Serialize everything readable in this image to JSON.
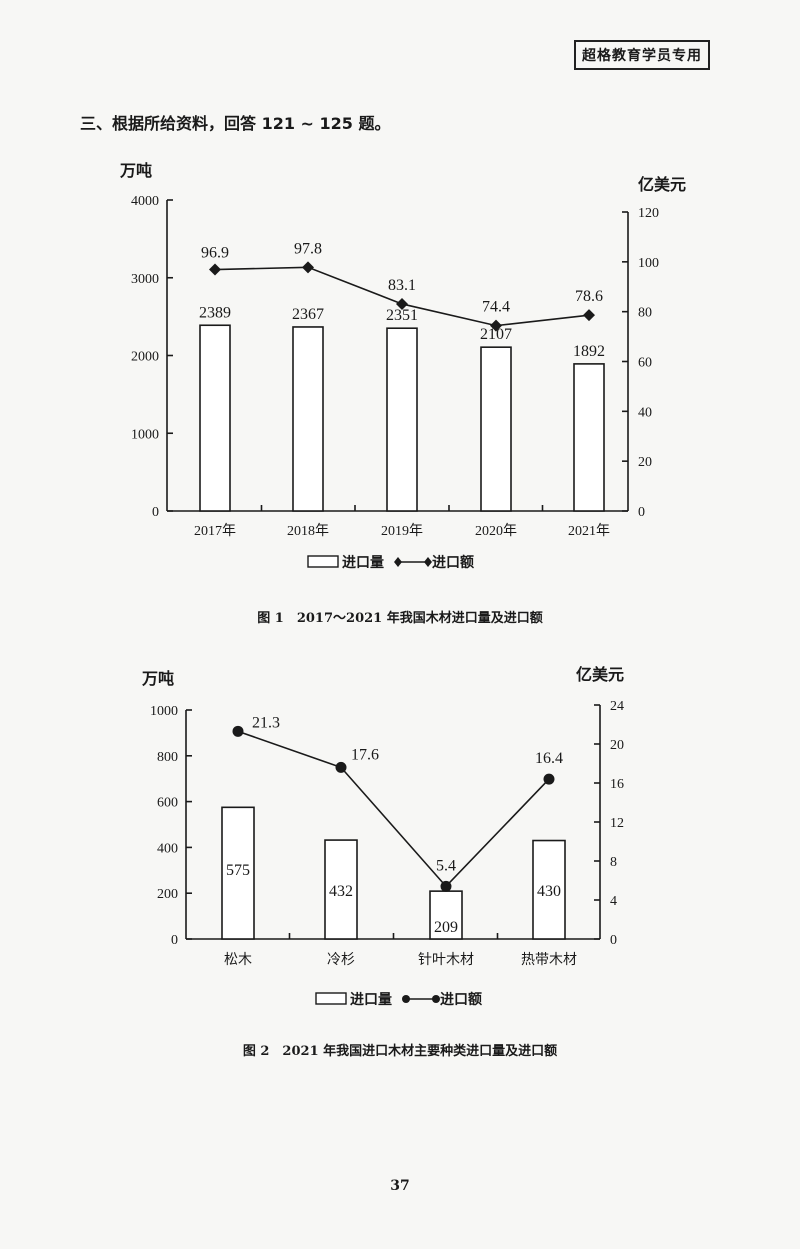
{
  "header": {
    "badge": "超格教育学员专用"
  },
  "question": {
    "text": "三、根据所给资料，回答 121 ~ 125 题。"
  },
  "chart_data": [
    {
      "type": "bar",
      "title": "图 1　2017～2021 年我国木材进口量及进口额",
      "categories": [
        "2017年",
        "2018年",
        "2019年",
        "2020年",
        "2021年"
      ],
      "series": [
        {
          "name": "进口量",
          "type": "bar",
          "axis": "left",
          "unit": "万吨",
          "values": [
            2389,
            2367,
            2351,
            2107,
            1892
          ]
        },
        {
          "name": "进口额",
          "type": "line",
          "axis": "right",
          "unit": "亿美元",
          "marker": "diamond",
          "values": [
            96.9,
            97.8,
            83.1,
            74.4,
            78.6
          ]
        }
      ],
      "ylabel": "万吨",
      "ylim": [
        0,
        4000
      ],
      "yticks": [
        0,
        1000,
        2000,
        3000,
        4000
      ],
      "y2label": "亿美元",
      "y2lim": [
        0,
        120
      ],
      "y2ticks": [
        0,
        20,
        40,
        60,
        80,
        100,
        120
      ],
      "legend": [
        "进口量",
        "进口额"
      ],
      "legend_position": "bottom",
      "grid": false
    },
    {
      "type": "bar",
      "title": "图 2　2021 年我国进口木材主要种类进口量及进口额",
      "categories": [
        "松木",
        "冷杉",
        "针叶木材",
        "热带木材"
      ],
      "series": [
        {
          "name": "进口量",
          "type": "bar",
          "axis": "left",
          "unit": "万吨",
          "values": [
            575,
            432,
            209,
            430
          ]
        },
        {
          "name": "进口额",
          "type": "line",
          "axis": "right",
          "unit": "亿美元",
          "marker": "circle",
          "values": [
            21.3,
            17.6,
            5.4,
            16.4
          ]
        }
      ],
      "ylabel": "万吨",
      "ylim": [
        0,
        1000
      ],
      "yticks": [
        0,
        200,
        400,
        600,
        800,
        1000
      ],
      "y2label": "亿美元",
      "y2lim": [
        0,
        24
      ],
      "y2ticks": [
        0,
        4,
        8,
        12,
        16,
        20,
        24
      ],
      "legend": [
        "进口量",
        "进口额"
      ],
      "legend_position": "bottom",
      "grid": false
    }
  ],
  "page": {
    "number": "37"
  }
}
